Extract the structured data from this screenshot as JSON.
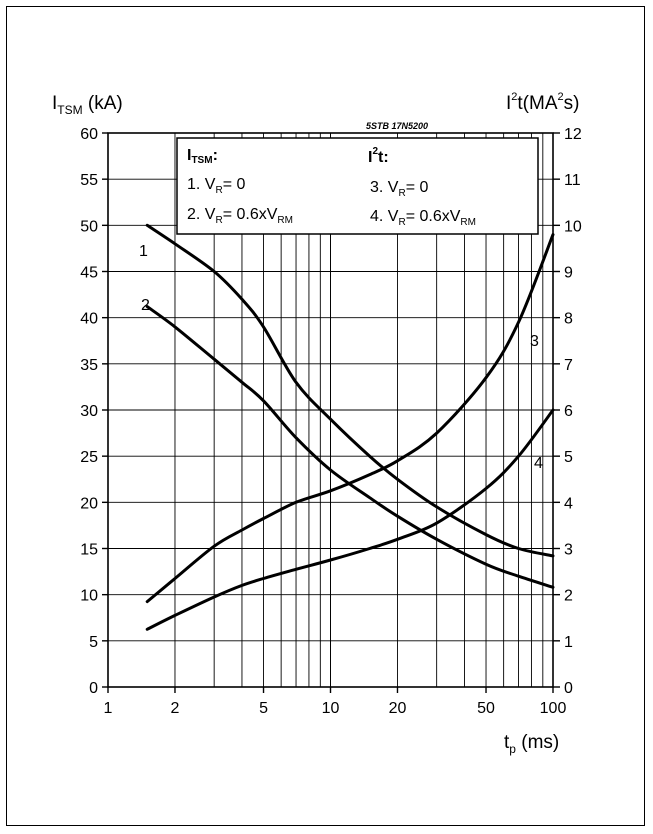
{
  "chart_data": {
    "type": "line",
    "left_axis": {
      "label_main": "I",
      "label_sub": "TSM",
      "label_unit": " (kA)",
      "range": [
        0,
        60
      ],
      "ticks": [
        0,
        5,
        10,
        15,
        20,
        25,
        30,
        35,
        40,
        45,
        50,
        55,
        60
      ]
    },
    "right_axis": {
      "label_main": "I",
      "label_sup": "2",
      "label_rest": "t(MA",
      "label_sup2": "2",
      "label_end": "s)",
      "range": [
        0,
        12
      ],
      "ticks": [
        0,
        1,
        2,
        3,
        4,
        5,
        6,
        7,
        8,
        9,
        10,
        11,
        12
      ]
    },
    "x_axis": {
      "label_main": "t",
      "label_sub": "p",
      "label_unit": " (ms)",
      "scale": "log",
      "range": [
        1,
        100
      ],
      "tick_labels": [
        1,
        2,
        5,
        10,
        20,
        50,
        100
      ]
    },
    "part_number": "5STB 17N5200",
    "legend": {
      "left_header_main": "I",
      "left_header_sub": "TSM",
      "left_header_colon": ":",
      "item1_text": "1. V",
      "item1_sub": "R",
      "item1_rest": "= 0",
      "item2_text": "2. V",
      "item2_sub": "R",
      "item2_rest": "= 0.6xV",
      "item2_sub2": "RM",
      "right_header_main": "I",
      "right_header_sup": "2",
      "right_header_rest": "t:",
      "item3_text": "3. V",
      "item3_sub": "R",
      "item3_rest": "= 0",
      "item4_text": "4. V",
      "item4_sub": "R",
      "item4_rest": "= 0.6xV",
      "item4_sub2": "RM"
    },
    "series": [
      {
        "label": "1",
        "axis": "left",
        "x": [
          1.5,
          2,
          3,
          4,
          5,
          7,
          10,
          15,
          20,
          30,
          50,
          70,
          100
        ],
        "y": [
          50,
          48,
          45,
          42,
          39,
          33,
          29,
          25,
          22.5,
          19.5,
          16.5,
          15,
          14.2
        ]
      },
      {
        "label": "2",
        "axis": "left",
        "x": [
          1.5,
          2,
          3,
          4,
          5,
          7,
          10,
          15,
          20,
          30,
          50,
          70,
          100
        ],
        "y": [
          41.2,
          39,
          35.5,
          33,
          31,
          27,
          23.5,
          20.5,
          18.5,
          16,
          13.3,
          12,
          10.8
        ]
      },
      {
        "label": "3",
        "axis": "right",
        "x": [
          1.5,
          2,
          3,
          4,
          5,
          7,
          10,
          15,
          20,
          30,
          50,
          70,
          100
        ],
        "y": [
          1.85,
          2.35,
          3.05,
          3.4,
          3.65,
          4.0,
          4.25,
          4.6,
          4.9,
          5.5,
          6.7,
          7.9,
          9.8
        ]
      },
      {
        "label": "4",
        "axis": "right",
        "x": [
          1.5,
          2,
          3,
          4,
          5,
          7,
          10,
          15,
          20,
          30,
          50,
          70,
          100
        ],
        "y": [
          1.25,
          1.55,
          1.95,
          2.2,
          2.35,
          2.55,
          2.75,
          3.0,
          3.2,
          3.55,
          4.3,
          5.0,
          6.0
        ]
      }
    ],
    "grid": true
  }
}
